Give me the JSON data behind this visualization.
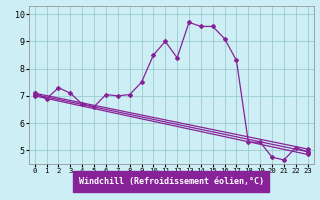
{
  "xlabel": "Windchill (Refroidissement éolien,°C)",
  "bg_color": "#cdeef4",
  "line_color": "#882299",
  "grid_color": "#99cccc",
  "xlim": [
    -0.5,
    23.5
  ],
  "ylim": [
    4.5,
    10.3
  ],
  "xticks": [
    0,
    1,
    2,
    3,
    4,
    5,
    6,
    7,
    8,
    9,
    10,
    11,
    12,
    13,
    14,
    15,
    16,
    17,
    18,
    19,
    20,
    21,
    22,
    23
  ],
  "yticks": [
    5,
    6,
    7,
    8,
    9,
    10
  ],
  "series1_x": [
    0,
    1,
    2,
    3,
    4,
    5,
    6,
    7,
    8,
    9,
    10,
    11,
    12,
    13,
    14,
    15,
    16,
    17,
    18,
    19,
    20,
    21,
    22,
    23
  ],
  "series1_y": [
    7.1,
    6.9,
    7.3,
    7.1,
    6.7,
    6.6,
    7.05,
    7.0,
    7.05,
    7.5,
    8.5,
    9.0,
    8.4,
    9.7,
    9.55,
    9.55,
    9.1,
    8.3,
    5.3,
    5.3,
    4.75,
    4.65,
    5.1,
    4.95
  ],
  "series2_x": [
    0,
    23
  ],
  "series2_y": [
    7.1,
    5.05
  ],
  "series3_x": [
    0,
    23
  ],
  "series3_y": [
    7.05,
    4.95
  ],
  "series4_x": [
    0,
    23
  ],
  "series4_y": [
    7.0,
    4.85
  ],
  "xlabel_bg": "#882299",
  "xlabel_color": "#ffffff",
  "xlabel_fontsize": 6.0,
  "tick_fontsize": 5.2,
  "ytick_fontsize": 6.0,
  "marker_size": 2.0,
  "line_width": 0.9
}
